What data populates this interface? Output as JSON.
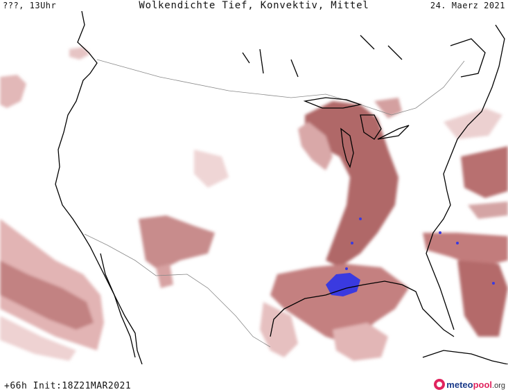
{
  "header": {
    "left": "???, 13Uhr",
    "title": "Wolkendichte  Tief, Konvektiv, Mittel",
    "date": "24. Maerz 2021"
  },
  "footer": {
    "init": "+66h  Init:18Z21MAR2021",
    "brand_main": "meteo",
    "brand_accent": "pool",
    "brand_suffix": ".org"
  },
  "colors": {
    "background": "#ffffff",
    "cloud_light": "#e8c4c4",
    "cloud_mid": "#c98a8a",
    "cloud_dark": "#a65a5a",
    "convective": "#3a3ae0",
    "coastline": "#000000",
    "border": "#888888",
    "brand_pink": "#e0245e",
    "brand_blue": "#1a3a8a"
  }
}
